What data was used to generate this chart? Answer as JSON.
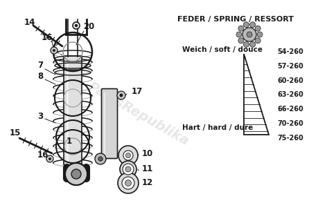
{
  "bg_color": "#ffffff",
  "title_text": "FEDER / SPRING / RESSORT",
  "soft_label": "Weich / soft / douce",
  "hard_label": "Hart / hard / dure",
  "spring_values": [
    "54-260",
    "57-260",
    "60-260",
    "63-260",
    "66-260",
    "70-260",
    "75-260"
  ],
  "watermark": "PartsRepublika",
  "line_color": "#1a1a1a",
  "text_color": "#1a1a1a",
  "label_fs": 8.5,
  "title_fs": 8.0,
  "body_fs": 7.5
}
